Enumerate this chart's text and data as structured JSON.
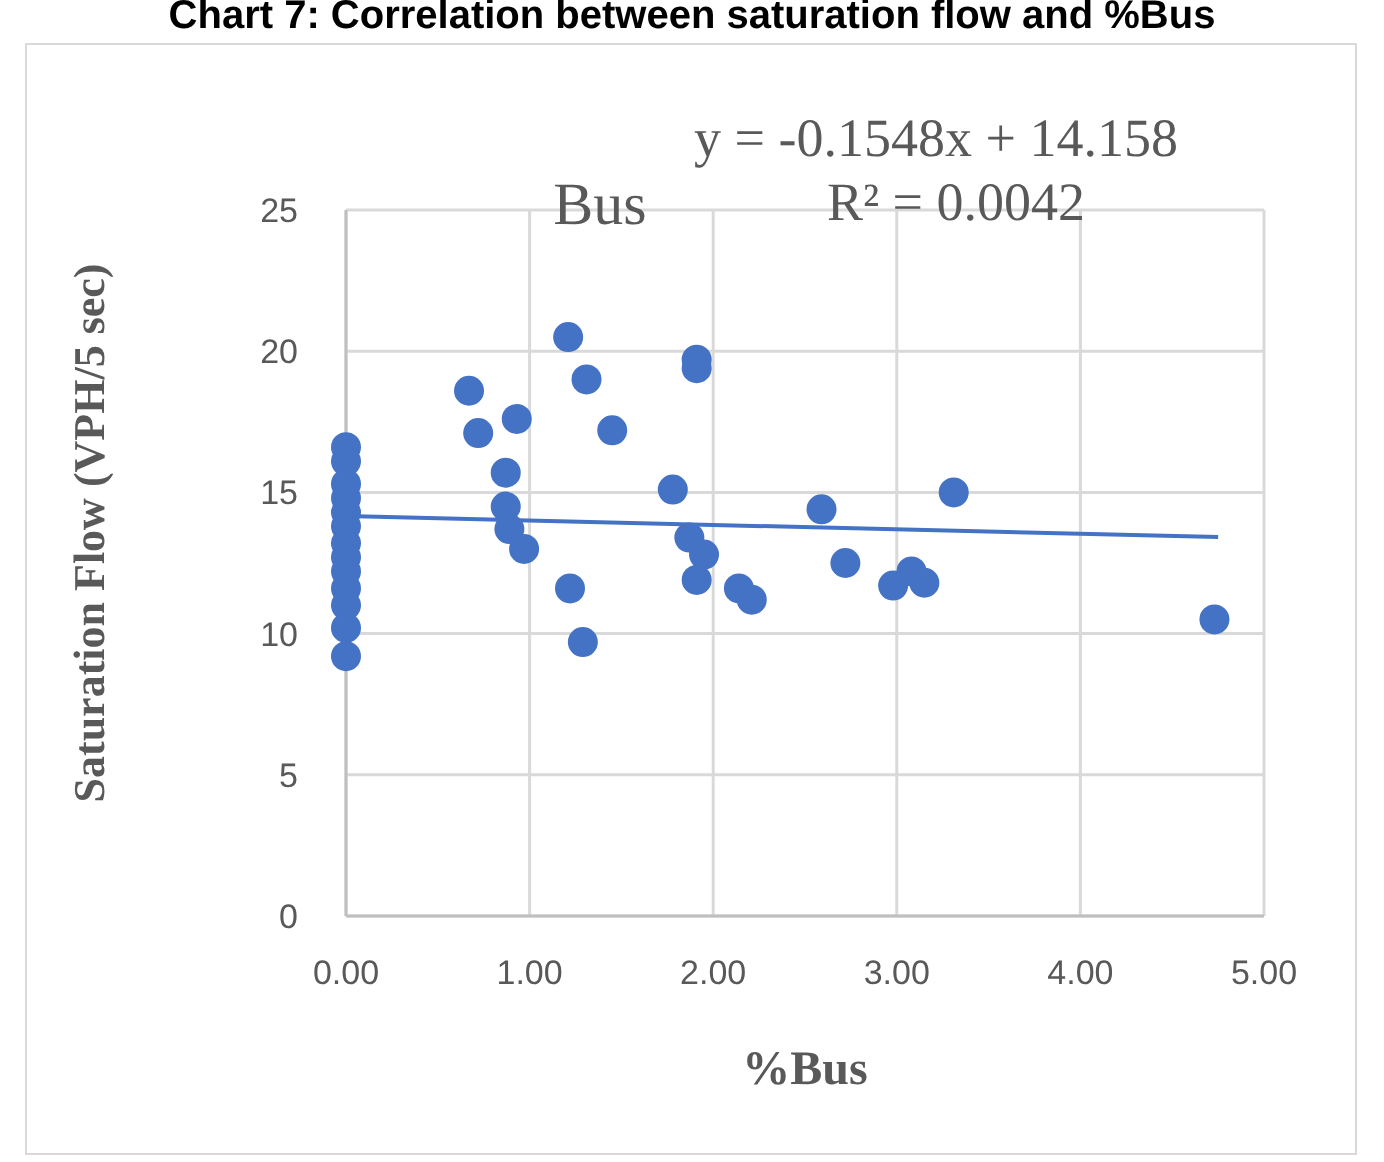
{
  "chart_data": {
    "type": "scatter",
    "title": "Chart 7: Correlation between saturation flow and %Bus",
    "xlabel": "%Bus",
    "ylabel": "Saturation Flow (VPH/5 sec)",
    "annotations": [
      "Bus",
      "y = -0.1548x + 14.158",
      "R² = 0.0042"
    ],
    "xlim": [
      0,
      5
    ],
    "xticks": [
      {
        "value": 0,
        "label": "0.00"
      },
      {
        "value": 1,
        "label": "1.00"
      },
      {
        "value": 2,
        "label": "2.00"
      },
      {
        "value": 3,
        "label": "3.00"
      },
      {
        "value": 4,
        "label": "4.00"
      },
      {
        "value": 5,
        "label": "5.00"
      }
    ],
    "ylim": [
      0,
      25
    ],
    "yticks": [
      0,
      5,
      10,
      15,
      20,
      25
    ],
    "grid": true,
    "series": [
      {
        "color": "#4472c4",
        "marker": "circle",
        "x": [
          0,
          0,
          0,
          0,
          0,
          0,
          0,
          0,
          0,
          0,
          0,
          0,
          0,
          0.67,
          0.72,
          0.93,
          0.87,
          0.87,
          0.89,
          0.97,
          1.21,
          1.31,
          1.45,
          1.22,
          1.29,
          1.91,
          1.91,
          1.78,
          1.87,
          1.95,
          1.91,
          2.14,
          2.21,
          2.59,
          2.72,
          3.31,
          2.98,
          3.08,
          3.15,
          4.73
        ],
        "values": [
          16.6,
          16.1,
          15.3,
          14.8,
          14.3,
          13.8,
          13.2,
          12.7,
          12.2,
          11.6,
          11.0,
          10.2,
          9.2,
          18.6,
          17.1,
          17.6,
          15.7,
          14.5,
          13.7,
          13.0,
          20.5,
          19.0,
          17.2,
          11.6,
          9.7,
          19.7,
          19.4,
          15.1,
          13.4,
          12.8,
          11.9,
          11.6,
          11.2,
          14.4,
          12.5,
          15.0,
          11.7,
          12.2,
          11.8,
          10.5
        ]
      },
      {
        "type": "line",
        "color": "#4472c4",
        "marker": "none",
        "x": [
          0,
          4.75
        ],
        "values": [
          14.16,
          13.42
        ]
      }
    ]
  }
}
